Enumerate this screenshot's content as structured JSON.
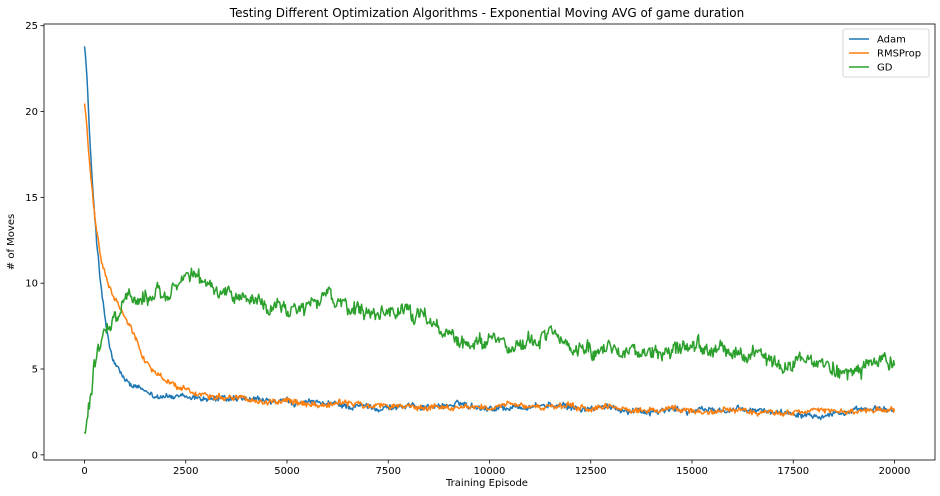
{
  "chart_data": {
    "type": "line",
    "title": "Testing Different Optimization Algorithms - Exponential Moving AVG of game duration",
    "xlabel": "Training Episode",
    "ylabel": "# of Moves",
    "xlim": [
      -1000,
      21000
    ],
    "ylim": [
      -0.3,
      25.1
    ],
    "xticks": [
      0,
      2500,
      5000,
      7500,
      10000,
      12500,
      15000,
      17500,
      20000
    ],
    "yticks": [
      0,
      5,
      10,
      15,
      20,
      25
    ],
    "grid": false,
    "legend_position": "top-right",
    "series": [
      {
        "name": "Adam",
        "color": "#1f77b4",
        "x": [
          0,
          50,
          100,
          150,
          200,
          300,
          400,
          500,
          600,
          700,
          800,
          1000,
          1200,
          1500,
          1800,
          2000,
          2500,
          3000,
          3500,
          4000,
          5000,
          6000,
          7000,
          7500,
          8000,
          9000,
          9500,
          10000,
          11000,
          11500,
          12000,
          13000,
          14000,
          15000,
          16000,
          17000,
          18000,
          19000,
          20000
        ],
        "values": [
          24,
          22.5,
          20,
          17.5,
          15.5,
          12.5,
          10,
          8,
          6.5,
          5.5,
          5,
          4.3,
          3.9,
          3.6,
          3.5,
          3.5,
          3.2,
          3.3,
          3.2,
          3.1,
          3.0,
          2.9,
          2.8,
          2.8,
          2.8,
          2.9,
          2.9,
          2.8,
          2.8,
          2.9,
          2.7,
          2.7,
          2.6,
          2.6,
          2.6,
          2.5,
          2.5,
          2.5,
          2.6
        ]
      },
      {
        "name": "RMSProp",
        "color": "#ff7f0e",
        "x": [
          0,
          50,
          100,
          200,
          300,
          400,
          500,
          600,
          700,
          800,
          1000,
          1200,
          1500,
          1800,
          2000,
          2500,
          3000,
          3500,
          4000,
          5000,
          6000,
          7000,
          7500,
          8000,
          9000,
          10000,
          11000,
          12000,
          13000,
          14000,
          15000,
          16000,
          17000,
          18000,
          19000,
          20000
        ],
        "values": [
          20.5,
          19.5,
          17.5,
          15,
          13,
          11.5,
          10.5,
          9.8,
          9.2,
          8.8,
          8,
          7,
          5.5,
          4.8,
          4.3,
          3.8,
          3.5,
          3.5,
          3.3,
          3.1,
          3.0,
          2.9,
          2.8,
          2.8,
          2.8,
          2.8,
          2.8,
          2.7,
          2.7,
          2.6,
          2.6,
          2.6,
          2.5,
          2.5,
          2.5,
          2.5
        ]
      },
      {
        "name": "GD",
        "color": "#2ca02c",
        "x": [
          0,
          100,
          200,
          300,
          400,
          500,
          700,
          1000,
          1500,
          2000,
          2500,
          3000,
          3500,
          4000,
          4500,
          5000,
          5500,
          6000,
          6500,
          7000,
          7500,
          8000,
          8500,
          9000,
          9500,
          10000,
          10500,
          11000,
          11500,
          12000,
          12500,
          13000,
          13500,
          14000,
          14500,
          15000,
          15500,
          16000,
          16500,
          17000,
          17500,
          18000,
          18500,
          19000,
          19500,
          20000
        ],
        "values": [
          1.0,
          3,
          4.5,
          6,
          7,
          7.5,
          8,
          9.3,
          9.2,
          9.5,
          10.2,
          10.0,
          9.5,
          9.2,
          8.6,
          8.5,
          8.7,
          9.3,
          8.6,
          8.0,
          7.8,
          8.5,
          7.5,
          7.0,
          6.5,
          7.0,
          6.5,
          6.6,
          7.0,
          6.0,
          6.2,
          6.5,
          6.2,
          5.8,
          6.0,
          6.0,
          5.9,
          5.6,
          5.8,
          5.3,
          5.6,
          5.2,
          5.3,
          5.1,
          5.2,
          5.1
        ]
      }
    ]
  }
}
